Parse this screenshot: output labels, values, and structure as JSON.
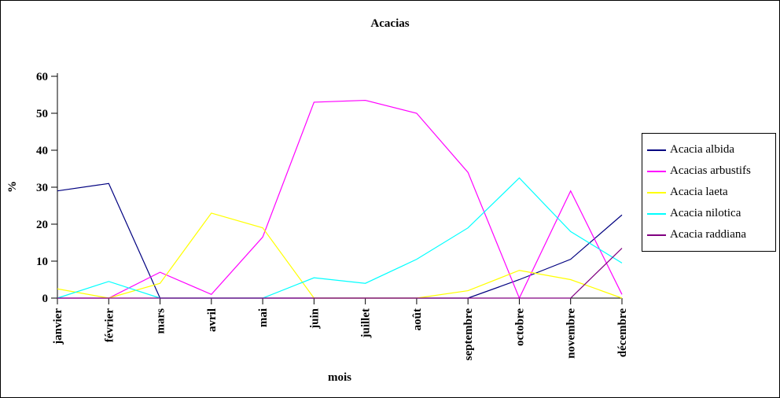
{
  "chart_data": {
    "type": "line",
    "title": "Acacias",
    "xlabel": "mois",
    "ylabel": "%",
    "ylim": [
      0,
      60
    ],
    "yticks": [
      0,
      10,
      20,
      30,
      40,
      50,
      60
    ],
    "grid": false,
    "legend_position": "right",
    "categories": [
      "janvier",
      "février",
      "mars",
      "avril",
      "mai",
      "juin",
      "juillet",
      "août",
      "septembre",
      "octobre",
      "novembre",
      "décembre"
    ],
    "series": [
      {
        "name": "Acacia albida",
        "color": "#000080",
        "values": [
          29,
          31,
          0,
          0,
          0,
          0,
          0,
          0,
          0,
          5,
          10.5,
          22.5
        ]
      },
      {
        "name": "Acacias arbustifs",
        "color": "#FF00FF",
        "values": [
          0,
          0,
          7,
          1,
          16.5,
          53,
          53.5,
          50,
          34,
          0,
          29,
          1
        ]
      },
      {
        "name": "Acacia laeta",
        "color": "#FFFF00",
        "values": [
          2.5,
          0,
          4,
          23,
          19,
          0,
          0,
          0,
          2,
          7.5,
          5,
          0
        ]
      },
      {
        "name": "Acacia nilotica",
        "color": "#00FFFF",
        "values": [
          0,
          4.5,
          0,
          0,
          0,
          5.5,
          4,
          10.5,
          19,
          32.5,
          18,
          9.5
        ]
      },
      {
        "name": "Acacia raddiana",
        "color": "#800080",
        "values": [
          0,
          0,
          0,
          0,
          0,
          0,
          0,
          0,
          0,
          0,
          0,
          13.5
        ]
      }
    ],
    "axis_color": "#000000",
    "background_color": "#FFFFFF"
  }
}
